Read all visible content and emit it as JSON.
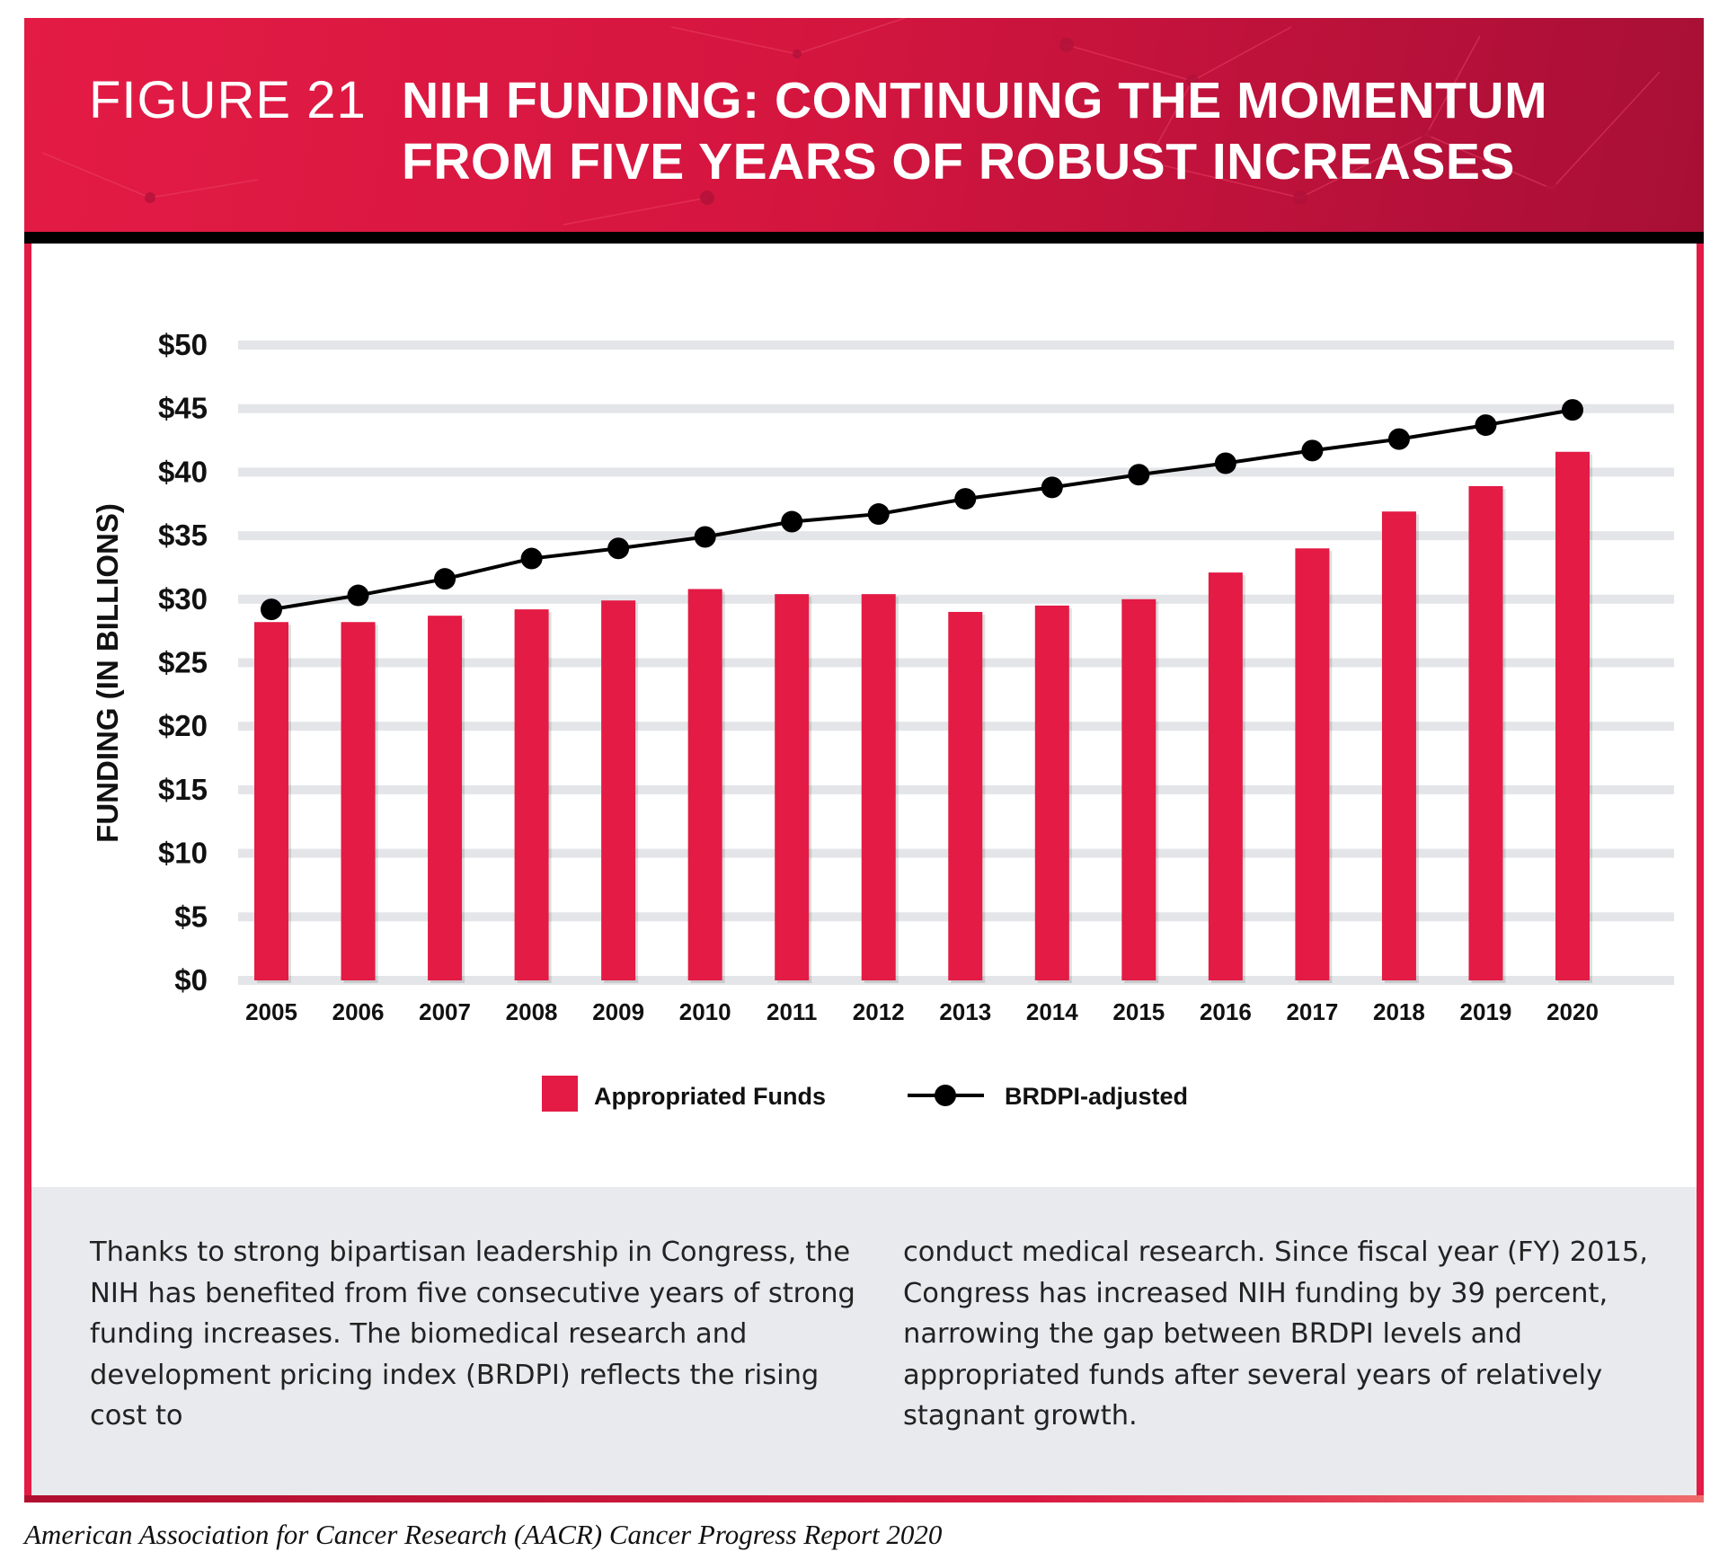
{
  "header": {
    "figure_label": "FIGURE 21",
    "title": "NIH FUNDING: CONTINUING THE MOMENTUM FROM FIVE YEARS OF ROBUST INCREASES"
  },
  "colors": {
    "accent": "#e31b45",
    "line": "#000000",
    "grid": "#e3e5e8",
    "text_box": "#e8eaed"
  },
  "chart_data": {
    "type": "bar",
    "title": "NIH FUNDING: CONTINUING THE MOMENTUM FROM FIVE YEARS OF ROBUST INCREASES",
    "xlabel": "",
    "ylabel": "FUNDING (IN BILLIONS)",
    "ylim": [
      0,
      50
    ],
    "yticks": [
      "$0",
      "$5",
      "$10",
      "$15",
      "$20",
      "$25",
      "$30",
      "$35",
      "$40",
      "$45",
      "$50"
    ],
    "grid": true,
    "legend_position": "bottom-center",
    "categories": [
      "2005",
      "2006",
      "2007",
      "2008",
      "2009",
      "2010",
      "2011",
      "2012",
      "2013",
      "2014",
      "2015",
      "2016",
      "2017",
      "2018",
      "2019",
      "2020"
    ],
    "series": [
      {
        "name": "Appropriated Funds",
        "type": "bar",
        "color": "#e31b45",
        "values": [
          28.2,
          28.2,
          28.7,
          29.2,
          29.9,
          30.8,
          30.4,
          30.4,
          29.0,
          29.5,
          30.0,
          32.1,
          34.0,
          36.9,
          38.9,
          41.6
        ]
      },
      {
        "name": "BRDPI-adjusted",
        "type": "line",
        "color": "#000000",
        "values": [
          29.2,
          30.3,
          31.6,
          33.2,
          34.0,
          34.9,
          36.1,
          36.7,
          37.9,
          38.8,
          39.8,
          40.7,
          41.7,
          42.6,
          43.7,
          44.9
        ]
      }
    ]
  },
  "body": {
    "paragraph_left": "Thanks to strong bipartisan leadership in Congress, the NIH has benefited from five consecutive years of strong funding increases. The biomedical research and development pricing index (BRDPI) reflects the rising cost to",
    "paragraph_right": "conduct medical research. Since fiscal year (FY) 2015, Congress has increased NIH funding by 39 percent, narrowing the gap between BRDPI levels and appropriated funds after several years of relatively stagnant growth."
  },
  "source": "American Association for Cancer Research (AACR) Cancer Progress Report 2020"
}
